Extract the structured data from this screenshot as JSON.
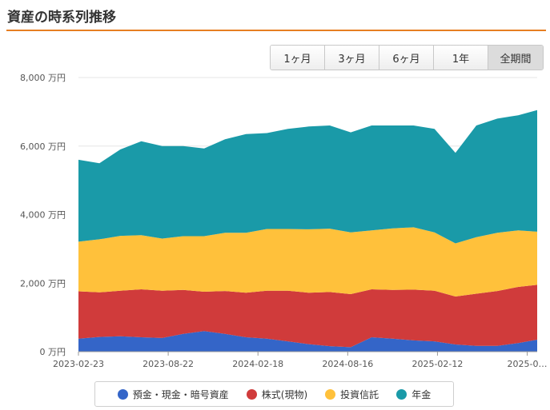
{
  "header": {
    "title": "資産の時系列推移"
  },
  "range_buttons": [
    {
      "label": "1ヶ月",
      "active": false
    },
    {
      "label": "3ヶ月",
      "active": false
    },
    {
      "label": "6ヶ月",
      "active": false
    },
    {
      "label": "1年",
      "active": false
    },
    {
      "label": "全期間",
      "active": true
    }
  ],
  "chart_data": {
    "type": "area",
    "stacked": true,
    "yunit": "万円",
    "ylim": [
      0,
      8000
    ],
    "yticks": [
      0,
      2000,
      4000,
      6000,
      8000
    ],
    "ytick_labels": [
      "0 万円",
      "2,000 万円",
      "4,000 万円",
      "6,000 万円",
      "8,000 万円"
    ],
    "xtick_labels": [
      "2023-02-23",
      "2023-08-22",
      "2024-02-18",
      "2024-08-16",
      "2025-02-12",
      "2025-0…"
    ],
    "xticks": [
      "2023-02-23",
      "2023-08-22",
      "2024-02-18",
      "2024-08-16",
      "2025-02-12",
      "2025-08-11"
    ],
    "x": [
      "2023-02-23",
      "2023-04-06",
      "2023-05-18",
      "2023-06-29",
      "2023-08-10",
      "2023-09-21",
      "2023-11-02",
      "2023-12-14",
      "2024-01-25",
      "2024-03-07",
      "2024-04-18",
      "2024-05-30",
      "2024-07-11",
      "2024-08-22",
      "2024-10-03",
      "2024-11-14",
      "2024-12-26",
      "2025-02-06",
      "2025-03-20",
      "2025-05-01",
      "2025-06-12",
      "2025-07-24",
      "2025-08-31"
    ],
    "series": [
      {
        "name": "預金・現金・暗号資産",
        "color": "#3465c8",
        "values": [
          380,
          430,
          450,
          420,
          400,
          520,
          600,
          520,
          420,
          380,
          300,
          220,
          160,
          130,
          420,
          380,
          330,
          300,
          210,
          170,
          170,
          250,
          350
        ]
      },
      {
        "name": "株式(現物)",
        "color": "#d03b3b",
        "values": [
          1380,
          1300,
          1330,
          1400,
          1380,
          1280,
          1150,
          1250,
          1300,
          1400,
          1480,
          1500,
          1580,
          1550,
          1400,
          1420,
          1480,
          1480,
          1400,
          1520,
          1600,
          1640,
          1600
        ]
      },
      {
        "name": "投資信託",
        "color": "#ffc13b",
        "values": [
          1450,
          1550,
          1600,
          1580,
          1520,
          1570,
          1620,
          1700,
          1750,
          1800,
          1800,
          1850,
          1850,
          1800,
          1720,
          1800,
          1820,
          1700,
          1550,
          1650,
          1700,
          1650,
          1550
        ]
      },
      {
        "name": "年金",
        "color": "#1a9aa8",
        "values": [
          2390,
          2220,
          2520,
          2740,
          2700,
          2630,
          2560,
          2730,
          2880,
          2800,
          2920,
          3000,
          3010,
          2920,
          3060,
          3000,
          2970,
          3020,
          2640,
          3260,
          3330,
          3360,
          3550
        ]
      }
    ]
  }
}
